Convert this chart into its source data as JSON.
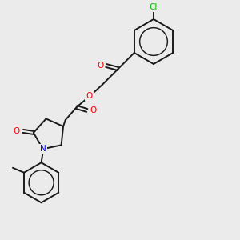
{
  "background_color": "#ebebeb",
  "bond_color": "#1a1a1a",
  "atom_colors": {
    "O": "#ff0000",
    "N": "#0000ff",
    "Cl": "#00bb00",
    "C": "#1a1a1a"
  },
  "figsize": [
    3.0,
    3.0
  ],
  "dpi": 100
}
